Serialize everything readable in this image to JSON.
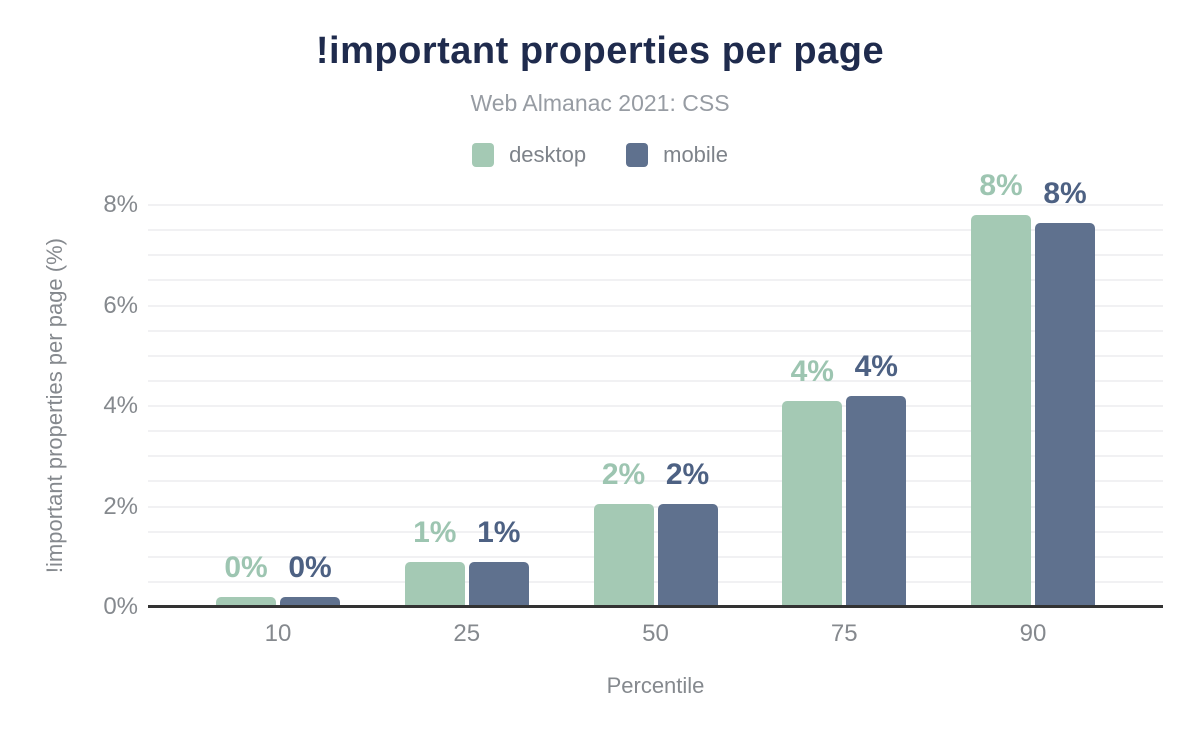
{
  "header": {
    "title": "!important properties per page",
    "subtitle": "Web Almanac 2021: CSS"
  },
  "chart_data": {
    "type": "bar",
    "title": "!important properties per page",
    "subtitle": "Web Almanac 2021: CSS",
    "categories": [
      "10",
      "25",
      "50",
      "75",
      "90"
    ],
    "series": [
      {
        "name": "desktop",
        "color": "#a4c9b4",
        "label_color": "#9dc5b1",
        "values": [
          0.2,
          0.9,
          2.05,
          4.1,
          7.8
        ],
        "labels": [
          "0%",
          "1%",
          "2%",
          "4%",
          "8%"
        ]
      },
      {
        "name": "mobile",
        "color": "#5f718e",
        "label_color": "#4d6183",
        "values": [
          0.2,
          0.9,
          2.05,
          4.2,
          7.65
        ],
        "labels": [
          "0%",
          "1%",
          "2%",
          "4%",
          "8%"
        ]
      }
    ],
    "xlabel": "Percentile",
    "ylabel": "!important properties per page (%)",
    "ylim": [
      0,
      8
    ],
    "yticks": [
      {
        "value": 0,
        "label": "0%"
      },
      {
        "value": 2,
        "label": "2%"
      },
      {
        "value": 4,
        "label": "4%"
      },
      {
        "value": 6,
        "label": "6%"
      },
      {
        "value": 8,
        "label": "8%"
      }
    ],
    "grid": true,
    "grid_step": 0.5,
    "legend_position": "top"
  },
  "colors": {
    "title": "#1f2b4d",
    "subtitle": "#979ca3",
    "axis_text": "#85898e",
    "gridline": "#f1f1f3",
    "axis_line": "#333333"
  }
}
